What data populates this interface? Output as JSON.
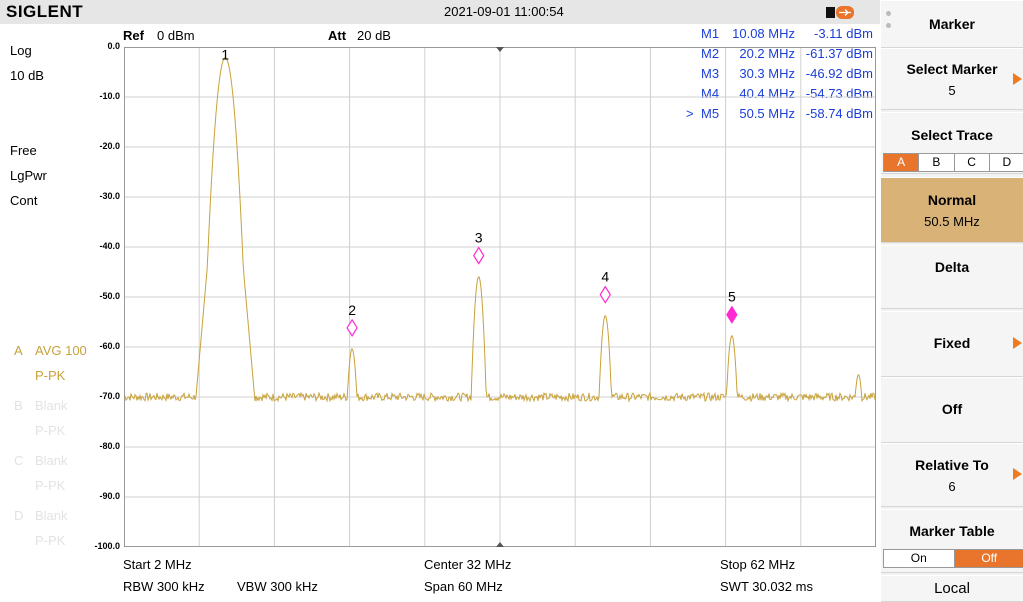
{
  "header": {
    "brand": "SIGLENT",
    "datetime": "2021-09-01 11:00:54"
  },
  "left_status": {
    "scale_type": "Log",
    "scale_div": "10 dB",
    "trigger": "Free",
    "detector": "LgPwr",
    "sweep_mode": "Cont",
    "traces": [
      {
        "id": "A",
        "mode": "AVG 100",
        "detect": "P-PK",
        "active": true
      },
      {
        "id": "B",
        "mode": "Blank",
        "detect": "P-PK",
        "active": false
      },
      {
        "id": "C",
        "mode": "Blank",
        "detect": "P-PK",
        "active": false
      },
      {
        "id": "D",
        "mode": "Blank",
        "detect": "P-PK",
        "active": false
      }
    ]
  },
  "top_info": {
    "ref_label": "Ref",
    "ref_value": "0 dBm",
    "att_label": "Att",
    "att_value": "20 dB"
  },
  "marker_readout": [
    {
      "name": "M1",
      "freq": "10.08 MHz",
      "level": "-3.11 dBm",
      "selected": false
    },
    {
      "name": "M2",
      "freq": "20.2 MHz",
      "level": "-61.37 dBm",
      "selected": false
    },
    {
      "name": "M3",
      "freq": "30.3 MHz",
      "level": "-46.92 dBm",
      "selected": false
    },
    {
      "name": "M4",
      "freq": "40.4 MHz",
      "level": "-54.73 dBm",
      "selected": false
    },
    {
      "name": "M5",
      "freq": "50.5 MHz",
      "level": "-58.74 dBm",
      "selected": true
    }
  ],
  "y_ticks": [
    "0.0",
    "-10.0",
    "-20.0",
    "-30.0",
    "-40.0",
    "-50.0",
    "-60.0",
    "-70.0",
    "-80.0",
    "-90.0",
    "-100.0"
  ],
  "chart_data": {
    "type": "line",
    "x_range": [
      2,
      62
    ],
    "y_range": [
      -100,
      0
    ],
    "noise_floor": -70,
    "peaks": [
      {
        "x": 10.08,
        "y": -3.11,
        "marker": "1"
      },
      {
        "x": 20.2,
        "y": -61.37,
        "marker": "2"
      },
      {
        "x": 30.3,
        "y": -46.92,
        "marker": "3"
      },
      {
        "x": 40.4,
        "y": -54.73,
        "marker": "4"
      },
      {
        "x": 50.5,
        "y": -58.74,
        "marker": "5",
        "active": true
      },
      {
        "x": 60.6,
        "y": -66.5
      }
    ],
    "trace_color": "#c8a23a"
  },
  "footer": {
    "start": "Start  2 MHz",
    "center": "Center  32 MHz",
    "stop": "Stop  62 MHz",
    "rbw": "RBW  300 kHz",
    "vbw": "VBW  300 kHz",
    "span": "Span   60 MHz",
    "swt": "SWT  30.032 ms"
  },
  "softkeys": {
    "title": "Marker",
    "select_marker": {
      "label": "Select Marker",
      "value": "5"
    },
    "select_trace": {
      "label": "Select Trace",
      "options": [
        "A",
        "B",
        "C",
        "D"
      ],
      "selected": "A"
    },
    "normal": {
      "label": "Normal",
      "value": "50.5 MHz"
    },
    "delta": "Delta",
    "fixed": "Fixed",
    "off": "Off",
    "relative_to": {
      "label": "Relative To",
      "value": "6"
    },
    "marker_table": {
      "label": "Marker Table",
      "on": "On",
      "off": "Off",
      "selected": "Off"
    },
    "local": "Local"
  },
  "colors": {
    "accent": "#e8752b",
    "marker_text": "#1a3fd8",
    "trace": "#c8a23a",
    "active_key": "#d9b277"
  }
}
